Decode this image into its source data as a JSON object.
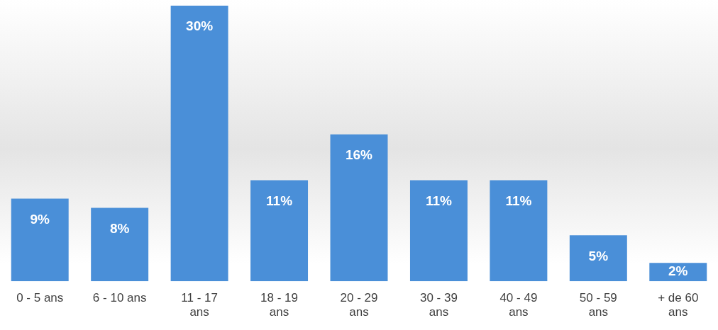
{
  "chart_data": {
    "type": "bar",
    "categories": [
      "0 - 5 ans",
      "6 - 10 ans",
      "11 - 17 ans",
      "18 - 19 ans",
      "20 - 29 ans",
      "30 - 39 ans",
      "40 - 49 ans",
      "50 - 59 ans",
      "+ de 60 ans"
    ],
    "values": [
      9,
      8,
      30,
      11,
      16,
      11,
      11,
      5,
      2
    ],
    "value_labels": [
      "9%",
      "8%",
      "30%",
      "11%",
      "16%",
      "11%",
      "11%",
      "5%",
      "2%"
    ],
    "color": "#4a8fd8",
    "ylim": [
      0,
      30
    ],
    "tick_labels": "x",
    "grid": false,
    "legend": false
  }
}
